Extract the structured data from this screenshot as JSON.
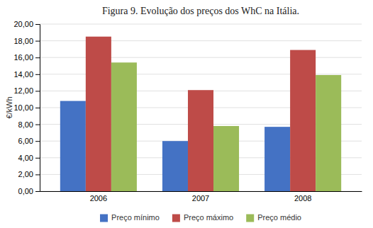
{
  "chart_data": {
    "type": "bar",
    "title": "Figura 9. Evolução dos preços dos WhC na Itália.",
    "categories": [
      "2006",
      "2007",
      "2008"
    ],
    "series": [
      {
        "name": "Preço mínimo",
        "color": "#4472C4",
        "values": [
          10.8,
          6.0,
          7.7
        ]
      },
      {
        "name": "Preço máximo",
        "color": "#BE4B48",
        "values": [
          18.5,
          12.1,
          16.9
        ]
      },
      {
        "name": "Preço médio",
        "color": "#9BBB59",
        "values": [
          15.4,
          7.8,
          13.9
        ]
      }
    ],
    "ylabel": "€/kWh",
    "ylim": [
      0,
      20.0
    ],
    "yticks": [
      {
        "value": 0.0,
        "label": "0,00"
      },
      {
        "value": 2.0,
        "label": "2,00"
      },
      {
        "value": 4.0,
        "label": "4,00"
      },
      {
        "value": 6.0,
        "label": "6,00"
      },
      {
        "value": 8.0,
        "label": "8,00"
      },
      {
        "value": 10.0,
        "label": "10,00"
      },
      {
        "value": 12.0,
        "label": "12,00"
      },
      {
        "value": 14.0,
        "label": "14,00"
      },
      {
        "value": 16.0,
        "label": "16,00"
      },
      {
        "value": 18.0,
        "label": "18,00"
      },
      {
        "value": 20.0,
        "label": "20,00"
      }
    ],
    "grid": true,
    "legend": "bottom"
  }
}
